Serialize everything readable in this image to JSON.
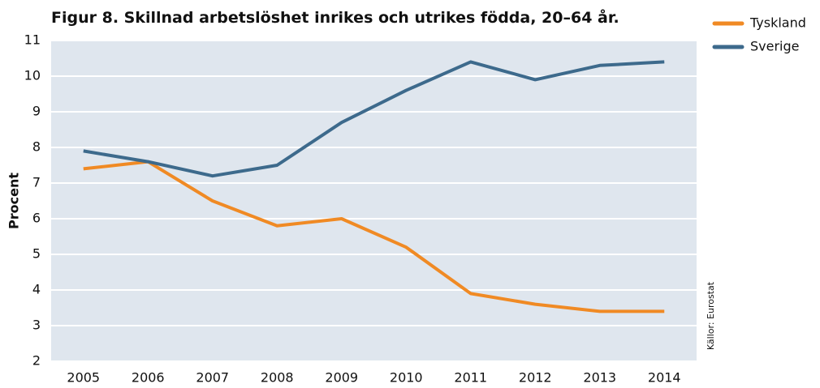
{
  "chart_data": {
    "type": "line",
    "title": "Figur 8. Skillnad arbetslöshet inrikes och utrikes födda, 20–64 år.",
    "y_label": "Procent",
    "source": "Källor: Eurostat",
    "categories": [
      "2005",
      "2006",
      "2007",
      "2008",
      "2009",
      "2010",
      "2011",
      "2012",
      "2013",
      "2014"
    ],
    "series": [
      {
        "name": "Tyskland",
        "color": "#f08a24",
        "values": [
          7.4,
          7.6,
          6.5,
          5.8,
          6.0,
          5.2,
          3.9,
          3.6,
          3.4,
          3.4
        ]
      },
      {
        "name": "Sverige",
        "color": "#3d6a8c",
        "values": [
          7.9,
          7.6,
          7.2,
          7.5,
          8.7,
          9.6,
          10.4,
          9.9,
          10.3,
          10.4
        ]
      }
    ],
    "ylim": [
      2,
      11
    ],
    "yticks": [
      2,
      3,
      4,
      5,
      6,
      7,
      8,
      9,
      10,
      11
    ],
    "grid": true,
    "legend": "right"
  }
}
